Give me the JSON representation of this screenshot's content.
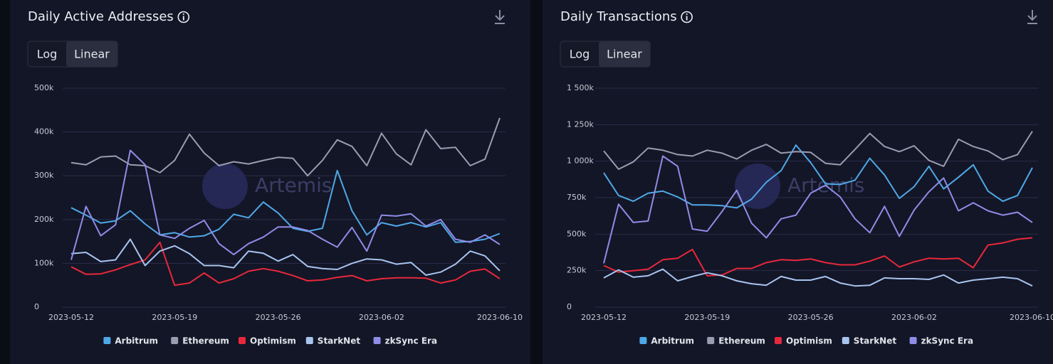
{
  "chart_data": [
    {
      "type": "line",
      "title": "Daily Active Addresses",
      "scale_options": [
        "Log",
        "Linear"
      ],
      "log_scale": false,
      "watermark": "Artemis",
      "grid": true,
      "x": [
        "2023-05-12",
        "2023-05-13",
        "2023-05-14",
        "2023-05-15",
        "2023-05-16",
        "2023-05-17",
        "2023-05-18",
        "2023-05-19",
        "2023-05-20",
        "2023-05-21",
        "2023-05-22",
        "2023-05-23",
        "2023-05-24",
        "2023-05-25",
        "2023-05-26",
        "2023-05-27",
        "2023-05-28",
        "2023-05-29",
        "2023-05-30",
        "2023-05-31",
        "2023-06-01",
        "2023-06-02",
        "2023-06-03",
        "2023-06-04",
        "2023-06-05",
        "2023-06-06",
        "2023-06-07",
        "2023-06-08",
        "2023-06-09",
        "2023-06-10"
      ],
      "xticks": [
        "2023-05-12",
        "2023-05-19",
        "2023-05-26",
        "2023-06-02",
        "2023-06-10"
      ],
      "ylim": [
        0,
        500000
      ],
      "yticks": [
        0,
        {
          "value": 100000,
          "label": "100k"
        },
        {
          "value": 200000,
          "label": "200k"
        },
        {
          "value": 300000,
          "label": "300k"
        },
        {
          "value": 400000,
          "label": "400k"
        },
        {
          "value": 500000,
          "label": "500k"
        }
      ],
      "series": [
        {
          "name": "Arbitrum",
          "color": "#4fa8e8",
          "values": [
            227000,
            210000,
            192000,
            197000,
            220000,
            190000,
            165000,
            170000,
            160000,
            163000,
            178000,
            212000,
            204000,
            240000,
            215000,
            180000,
            173000,
            180000,
            312000,
            220000,
            165000,
            193000,
            185000,
            193000,
            183000,
            193000,
            148000,
            150000,
            155000,
            168000
          ]
        },
        {
          "name": "Ethereum",
          "color": "#9a9cb0",
          "values": [
            330000,
            325000,
            343000,
            345000,
            325000,
            323000,
            307000,
            335000,
            395000,
            352000,
            323000,
            332000,
            327000,
            335000,
            342000,
            340000,
            300000,
            335000,
            382000,
            367000,
            323000,
            397000,
            350000,
            325000,
            405000,
            362000,
            365000,
            323000,
            338000,
            432000
          ]
        },
        {
          "name": "Optimism",
          "color": "#e8283c",
          "values": [
            92000,
            75000,
            76000,
            85000,
            97000,
            108000,
            148000,
            50000,
            55000,
            78000,
            55000,
            65000,
            82000,
            88000,
            82000,
            72000,
            60000,
            62000,
            68000,
            72000,
            60000,
            65000,
            67000,
            67000,
            66000,
            55000,
            62000,
            82000,
            87000,
            65000
          ]
        },
        {
          "name": "StarkNet",
          "color": "#a8c4f0",
          "values": [
            122000,
            125000,
            104000,
            108000,
            155000,
            95000,
            128000,
            140000,
            122000,
            95000,
            95000,
            90000,
            128000,
            123000,
            105000,
            120000,
            93000,
            88000,
            86000,
            100000,
            110000,
            108000,
            98000,
            102000,
            73000,
            80000,
            98000,
            128000,
            117000,
            83000
          ]
        },
        {
          "name": "zkSync Era",
          "color": "#8f8ce8",
          "values": [
            108000,
            230000,
            163000,
            188000,
            358000,
            325000,
            165000,
            157000,
            180000,
            198000,
            145000,
            120000,
            145000,
            160000,
            183000,
            183000,
            175000,
            155000,
            137000,
            182000,
            128000,
            210000,
            208000,
            213000,
            185000,
            200000,
            155000,
            148000,
            165000,
            143000
          ]
        }
      ]
    },
    {
      "type": "line",
      "title": "Daily Transactions",
      "scale_options": [
        "Log",
        "Linear"
      ],
      "log_scale": false,
      "watermark": "Artemis",
      "grid": true,
      "x": [
        "2023-05-12",
        "2023-05-13",
        "2023-05-14",
        "2023-05-15",
        "2023-05-16",
        "2023-05-17",
        "2023-05-18",
        "2023-05-19",
        "2023-05-20",
        "2023-05-21",
        "2023-05-22",
        "2023-05-23",
        "2023-05-24",
        "2023-05-25",
        "2023-05-26",
        "2023-05-27",
        "2023-05-28",
        "2023-05-29",
        "2023-05-30",
        "2023-05-31",
        "2023-06-01",
        "2023-06-02",
        "2023-06-03",
        "2023-06-04",
        "2023-06-05",
        "2023-06-06",
        "2023-06-07",
        "2023-06-08",
        "2023-06-09",
        "2023-06-10"
      ],
      "xticks": [
        "2023-05-12",
        "2023-05-19",
        "2023-05-26",
        "2023-06-02",
        "2023-06-10"
      ],
      "ylim": [
        0,
        1500000
      ],
      "yticks": [
        0,
        {
          "value": 250000,
          "label": "250k"
        },
        {
          "value": 500000,
          "label": "500k"
        },
        {
          "value": 750000,
          "label": "750k"
        },
        {
          "value": 1000000,
          "label": "1 000k"
        },
        {
          "value": 1250000,
          "label": "1 250k"
        },
        {
          "value": 1500000,
          "label": "1 500k"
        }
      ],
      "series": [
        {
          "name": "Arbitrum",
          "color": "#4fa8e8",
          "values": [
            920000,
            765000,
            725000,
            780000,
            795000,
            755000,
            700000,
            700000,
            695000,
            680000,
            740000,
            855000,
            935000,
            1110000,
            990000,
            845000,
            840000,
            870000,
            1020000,
            905000,
            745000,
            825000,
            965000,
            810000,
            890000,
            975000,
            795000,
            725000,
            765000,
            955000
          ]
        },
        {
          "name": "Ethereum",
          "color": "#9a9cb0",
          "values": [
            1070000,
            945000,
            995000,
            1090000,
            1075000,
            1045000,
            1035000,
            1075000,
            1055000,
            1015000,
            1075000,
            1115000,
            1055000,
            1065000,
            1060000,
            985000,
            975000,
            1080000,
            1190000,
            1100000,
            1065000,
            1105000,
            1005000,
            965000,
            1150000,
            1100000,
            1070000,
            1010000,
            1045000,
            1205000
          ]
        },
        {
          "name": "Optimism",
          "color": "#e8283c",
          "values": [
            285000,
            240000,
            250000,
            260000,
            325000,
            335000,
            395000,
            215000,
            220000,
            265000,
            265000,
            305000,
            325000,
            320000,
            330000,
            305000,
            290000,
            290000,
            315000,
            350000,
            275000,
            310000,
            335000,
            330000,
            335000,
            270000,
            425000,
            440000,
            465000,
            475000
          ]
        },
        {
          "name": "StarkNet",
          "color": "#a8c4f0",
          "values": [
            200000,
            255000,
            205000,
            215000,
            260000,
            180000,
            210000,
            235000,
            215000,
            180000,
            160000,
            150000,
            210000,
            185000,
            185000,
            210000,
            165000,
            145000,
            150000,
            200000,
            195000,
            195000,
            190000,
            220000,
            165000,
            185000,
            195000,
            205000,
            195000,
            145000
          ]
        },
        {
          "name": "zkSync Era",
          "color": "#8f8ce8",
          "values": [
            300000,
            705000,
            580000,
            590000,
            1035000,
            965000,
            535000,
            520000,
            655000,
            800000,
            575000,
            475000,
            605000,
            630000,
            780000,
            835000,
            755000,
            605000,
            510000,
            690000,
            485000,
            665000,
            790000,
            885000,
            660000,
            715000,
            660000,
            630000,
            650000,
            580000
          ]
        }
      ]
    }
  ]
}
